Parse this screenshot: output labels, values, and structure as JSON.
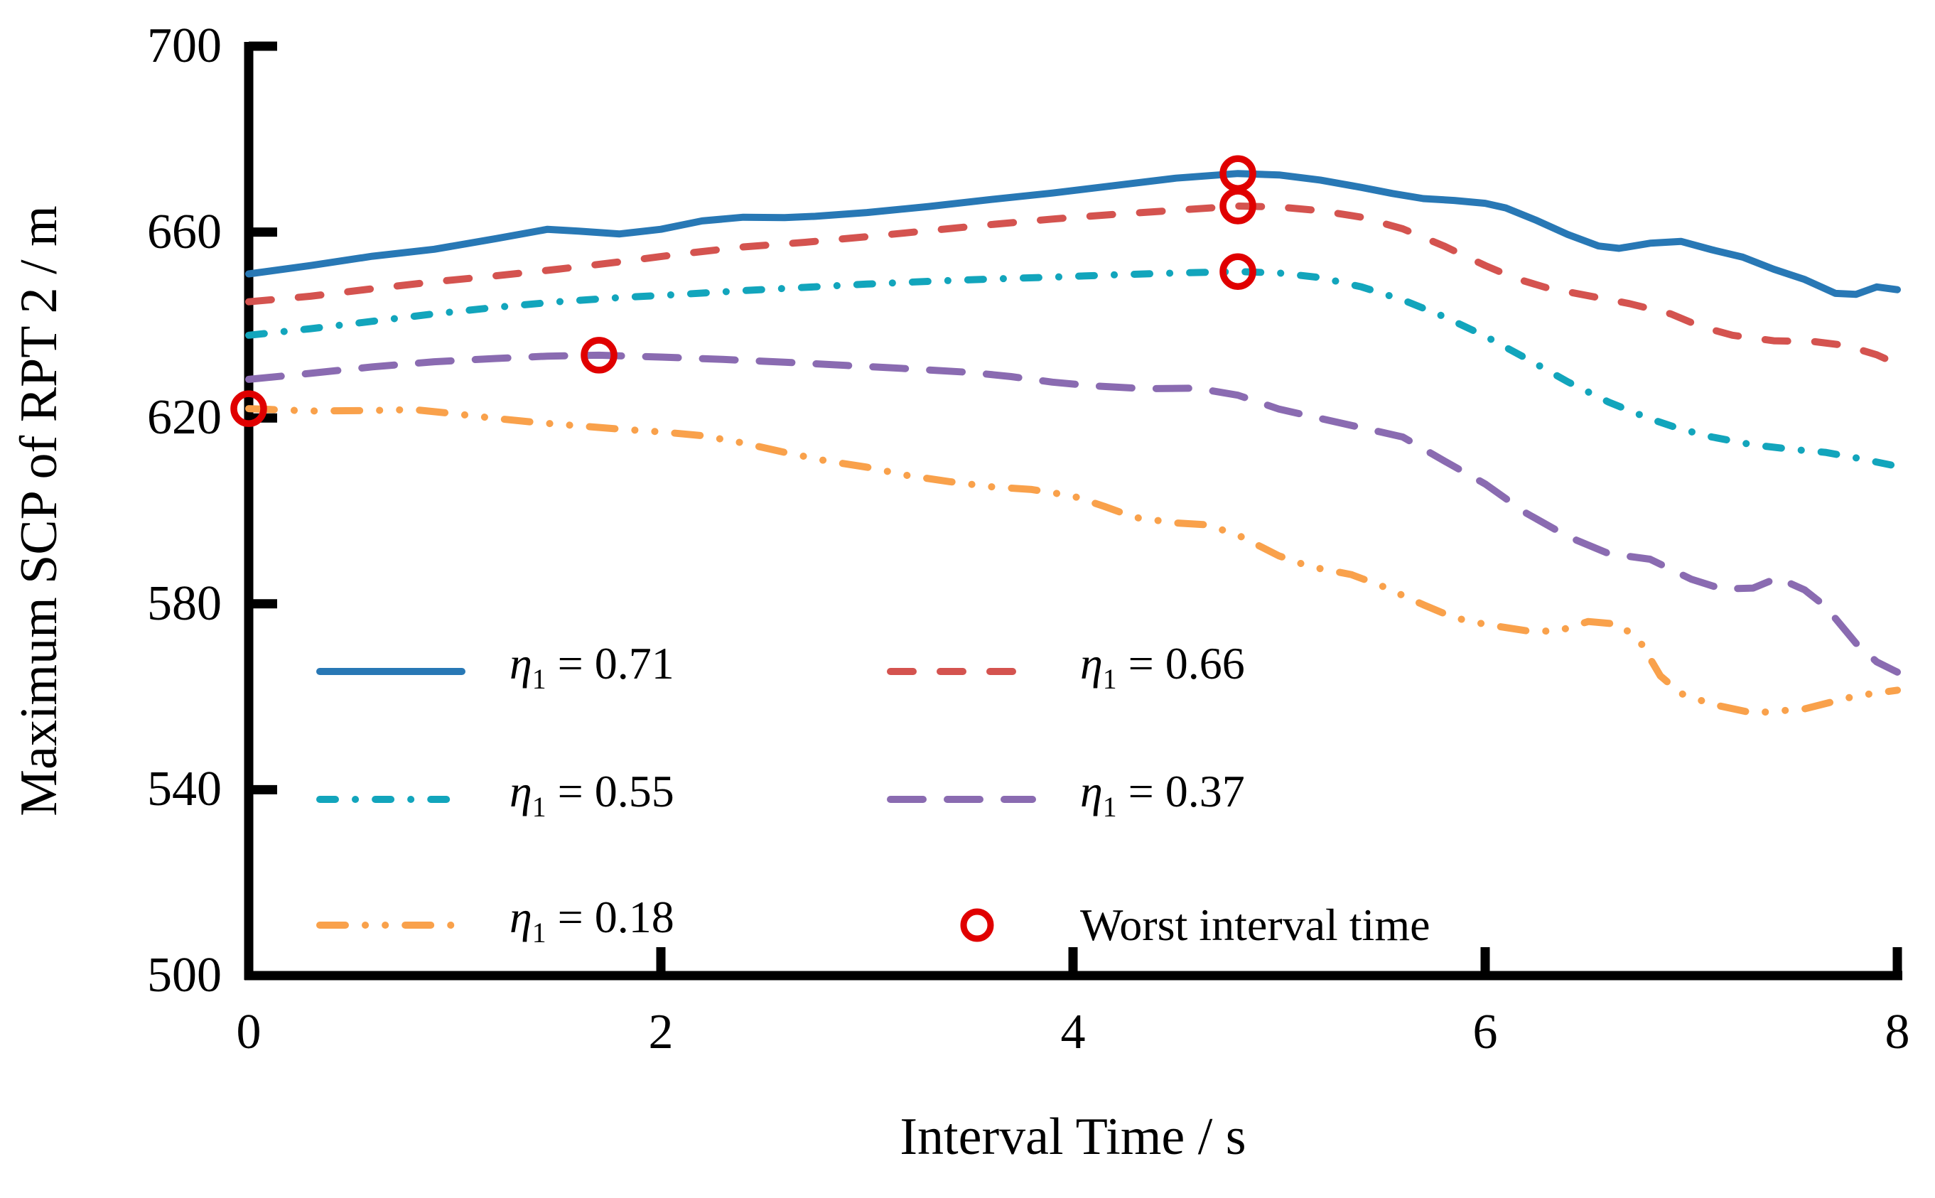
{
  "chart_data": {
    "type": "line",
    "title": "",
    "xlabel": "Interval Time / s",
    "ylabel": "Maximum SCP of RPT 2 / m",
    "xlim": [
      0,
      8
    ],
    "ylim": [
      500,
      700
    ],
    "xticks": [
      0,
      2,
      4,
      6,
      8
    ],
    "yticks": [
      500,
      540,
      580,
      620,
      660,
      700
    ],
    "grid": false,
    "legend_position": "lower-left-inside",
    "axis_color": "#000000",
    "series": [
      {
        "name": "η1 = 0.71",
        "color": "#2878b5",
        "style": "solid",
        "points": [
          [
            0,
            651
          ],
          [
            0.3,
            652.8
          ],
          [
            0.6,
            654.8
          ],
          [
            0.9,
            656.3
          ],
          [
            1.2,
            658.6
          ],
          [
            1.45,
            660.6
          ],
          [
            1.6,
            660.2
          ],
          [
            1.8,
            659.6
          ],
          [
            2.0,
            660.6
          ],
          [
            2.2,
            662.4
          ],
          [
            2.4,
            663.2
          ],
          [
            2.6,
            663.1
          ],
          [
            2.75,
            663.4
          ],
          [
            3.0,
            664.2
          ],
          [
            3.3,
            665.5
          ],
          [
            3.6,
            667
          ],
          [
            3.9,
            668.4
          ],
          [
            4.2,
            670
          ],
          [
            4.5,
            671.6
          ],
          [
            4.8,
            672.6
          ],
          [
            5.0,
            672.3
          ],
          [
            5.2,
            671.2
          ],
          [
            5.4,
            669.6
          ],
          [
            5.55,
            668.3
          ],
          [
            5.7,
            667.2
          ],
          [
            5.85,
            666.8
          ],
          [
            6.0,
            666.2
          ],
          [
            6.1,
            665.2
          ],
          [
            6.25,
            662.5
          ],
          [
            6.4,
            659.5
          ],
          [
            6.55,
            657
          ],
          [
            6.65,
            656.5
          ],
          [
            6.8,
            657.6
          ],
          [
            6.95,
            658
          ],
          [
            7.1,
            656.2
          ],
          [
            7.25,
            654.6
          ],
          [
            7.4,
            652
          ],
          [
            7.55,
            649.8
          ],
          [
            7.7,
            646.8
          ],
          [
            7.8,
            646.6
          ],
          [
            7.9,
            648.2
          ],
          [
            8.0,
            647.6
          ]
        ]
      },
      {
        "name": "η1 = 0.66",
        "color": "#d4534f",
        "style": "dashed",
        "points": [
          [
            0,
            645
          ],
          [
            0.3,
            646.2
          ],
          [
            0.6,
            647.8
          ],
          [
            0.9,
            649.3
          ],
          [
            1.2,
            650.6
          ],
          [
            1.5,
            652
          ],
          [
            1.8,
            653.6
          ],
          [
            2.1,
            655.3
          ],
          [
            2.4,
            656.8
          ],
          [
            2.7,
            657.8
          ],
          [
            3.0,
            659
          ],
          [
            3.3,
            660.3
          ],
          [
            3.6,
            661.6
          ],
          [
            3.9,
            662.8
          ],
          [
            4.2,
            663.8
          ],
          [
            4.5,
            664.7
          ],
          [
            4.8,
            665.6
          ],
          [
            5.0,
            665.4
          ],
          [
            5.2,
            664.6
          ],
          [
            5.4,
            663.2
          ],
          [
            5.6,
            660.7
          ],
          [
            5.8,
            657
          ],
          [
            6.0,
            652.8
          ],
          [
            6.15,
            650
          ],
          [
            6.3,
            648
          ],
          [
            6.5,
            646.3
          ],
          [
            6.7,
            644.6
          ],
          [
            6.9,
            642.4
          ],
          [
            7.05,
            639.6
          ],
          [
            7.2,
            637.8
          ],
          [
            7.4,
            636.6
          ],
          [
            7.6,
            636.4
          ],
          [
            7.75,
            635.6
          ],
          [
            7.9,
            633.6
          ],
          [
            8.0,
            631.6
          ]
        ]
      },
      {
        "name": "η1 = 0.55",
        "color": "#12a5bc",
        "style": "dash-dot",
        "points": [
          [
            0,
            637.8
          ],
          [
            0.3,
            639.2
          ],
          [
            0.6,
            640.8
          ],
          [
            0.9,
            642.4
          ],
          [
            1.2,
            643.8
          ],
          [
            1.5,
            645
          ],
          [
            1.8,
            645.9
          ],
          [
            2.1,
            646.6
          ],
          [
            2.4,
            647.4
          ],
          [
            2.7,
            648.1
          ],
          [
            3.0,
            648.8
          ],
          [
            3.3,
            649.4
          ],
          [
            3.6,
            649.9
          ],
          [
            3.9,
            650.3
          ],
          [
            4.2,
            650.8
          ],
          [
            4.5,
            651.2
          ],
          [
            4.8,
            651.5
          ],
          [
            5.0,
            651.2
          ],
          [
            5.2,
            650.2
          ],
          [
            5.4,
            648.2
          ],
          [
            5.6,
            645.4
          ],
          [
            5.8,
            641.8
          ],
          [
            6.0,
            637.6
          ],
          [
            6.2,
            632.8
          ],
          [
            6.4,
            627.8
          ],
          [
            6.6,
            623.4
          ],
          [
            6.8,
            619.8
          ],
          [
            6.95,
            617.6
          ],
          [
            7.1,
            615.9
          ],
          [
            7.3,
            614.2
          ],
          [
            7.5,
            613.2
          ],
          [
            7.65,
            612.6
          ],
          [
            7.8,
            611.4
          ],
          [
            8.0,
            609.6
          ]
        ]
      },
      {
        "name": "η1 = 0.37",
        "color": "#8a6bb1",
        "style": "long-dash",
        "points": [
          [
            0,
            628.3
          ],
          [
            0.3,
            629.6
          ],
          [
            0.6,
            631
          ],
          [
            0.9,
            632.1
          ],
          [
            1.2,
            632.8
          ],
          [
            1.45,
            633.3
          ],
          [
            1.7,
            633.5
          ],
          [
            2.0,
            633.1
          ],
          [
            2.3,
            632.6
          ],
          [
            2.6,
            632
          ],
          [
            2.9,
            631.3
          ],
          [
            3.2,
            630.6
          ],
          [
            3.5,
            629.8
          ],
          [
            3.7,
            628.9
          ],
          [
            3.9,
            627.7
          ],
          [
            4.1,
            626.9
          ],
          [
            4.35,
            626.3
          ],
          [
            4.6,
            626.4
          ],
          [
            4.8,
            624.9
          ],
          [
            5.0,
            621.9
          ],
          [
            5.2,
            619.9
          ],
          [
            5.4,
            617.9
          ],
          [
            5.6,
            615.9
          ],
          [
            5.8,
            610.8
          ],
          [
            6.0,
            605.8
          ],
          [
            6.2,
            599.5
          ],
          [
            6.4,
            594.5
          ],
          [
            6.6,
            590.8
          ],
          [
            6.8,
            589.6
          ],
          [
            7.0,
            585.3
          ],
          [
            7.15,
            583.2
          ],
          [
            7.3,
            583.4
          ],
          [
            7.42,
            585.6
          ],
          [
            7.55,
            583
          ],
          [
            7.65,
            579.5
          ],
          [
            7.8,
            571.5
          ],
          [
            7.9,
            567.5
          ],
          [
            8.0,
            565.3
          ]
        ]
      },
      {
        "name": "η1 = 0.18",
        "color": "#f9a14b",
        "style": "dash-dot-dot",
        "points": [
          [
            0,
            622
          ],
          [
            0.3,
            621.5
          ],
          [
            0.6,
            621.6
          ],
          [
            0.8,
            621.8
          ],
          [
            1.0,
            620.9
          ],
          [
            1.2,
            619.9
          ],
          [
            1.4,
            619
          ],
          [
            1.6,
            618.3
          ],
          [
            1.8,
            617.6
          ],
          [
            2.0,
            617
          ],
          [
            2.2,
            616.2
          ],
          [
            2.4,
            614.6
          ],
          [
            2.6,
            612.6
          ],
          [
            2.8,
            610.8
          ],
          [
            3.0,
            609.4
          ],
          [
            3.2,
            607.6
          ],
          [
            3.4,
            606.3
          ],
          [
            3.6,
            605.2
          ],
          [
            3.8,
            604.6
          ],
          [
            4.0,
            603.2
          ],
          [
            4.15,
            601
          ],
          [
            4.3,
            598.6
          ],
          [
            4.5,
            597.4
          ],
          [
            4.65,
            597
          ],
          [
            4.8,
            594.8
          ],
          [
            5.0,
            590.3
          ],
          [
            5.15,
            588
          ],
          [
            5.35,
            586.3
          ],
          [
            5.5,
            583.8
          ],
          [
            5.7,
            579.8
          ],
          [
            5.85,
            577
          ],
          [
            6.0,
            575.6
          ],
          [
            6.2,
            574.2
          ],
          [
            6.35,
            574.1
          ],
          [
            6.5,
            576.2
          ],
          [
            6.65,
            575.6
          ],
          [
            6.75,
            572
          ],
          [
            6.85,
            564.5
          ],
          [
            6.95,
            560.7
          ],
          [
            7.1,
            558.4
          ],
          [
            7.3,
            556.5
          ],
          [
            7.55,
            557.4
          ],
          [
            7.8,
            560.2
          ],
          [
            8.0,
            561.4
          ]
        ]
      }
    ],
    "worst_points": {
      "label": "Worst interval time",
      "color": "#e00000",
      "points": [
        [
          0,
          622
        ],
        [
          1.7,
          633.5
        ],
        [
          4.8,
          651.5
        ],
        [
          4.8,
          665.6
        ],
        [
          4.8,
          672.6
        ]
      ]
    }
  },
  "legend": {
    "items": [
      {
        "sym": "η",
        "sub": "1",
        "val": " = 0.71",
        "series": 0
      },
      {
        "sym": "η",
        "sub": "1",
        "val": " = 0.66",
        "series": 1
      },
      {
        "sym": "η",
        "sub": "1",
        "val": " = 0.55",
        "series": 2
      },
      {
        "sym": "η",
        "sub": "1",
        "val": " = 0.37",
        "series": 3
      },
      {
        "sym": "η",
        "sub": "1",
        "val": " = 0.18",
        "series": 4
      },
      {
        "label": "Worst interval time",
        "marker": "circle"
      }
    ]
  }
}
